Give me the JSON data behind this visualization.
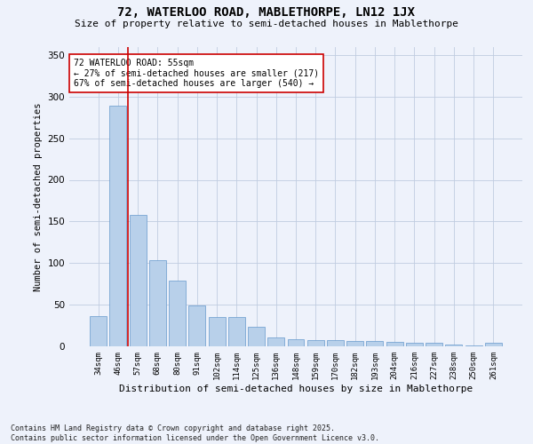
{
  "title": "72, WATERLOO ROAD, MABLETHORPE, LN12 1JX",
  "subtitle": "Size of property relative to semi-detached houses in Mablethorpe",
  "xlabel": "Distribution of semi-detached houses by size in Mablethorpe",
  "ylabel": "Number of semi-detached properties",
  "categories": [
    "34sqm",
    "46sqm",
    "57sqm",
    "68sqm",
    "80sqm",
    "91sqm",
    "102sqm",
    "114sqm",
    "125sqm",
    "136sqm",
    "148sqm",
    "159sqm",
    "170sqm",
    "182sqm",
    "193sqm",
    "204sqm",
    "216sqm",
    "227sqm",
    "238sqm",
    "250sqm",
    "261sqm"
  ],
  "values": [
    36,
    289,
    158,
    103,
    79,
    49,
    35,
    35,
    23,
    11,
    9,
    7,
    7,
    6,
    6,
    5,
    4,
    4,
    2,
    1,
    4
  ],
  "bar_color": "#b8d0ea",
  "bar_edge_color": "#6699cc",
  "vline_x": 1.5,
  "vline_color": "#cc0000",
  "annotation_text": "72 WATERLOO ROAD: 55sqm\n← 27% of semi-detached houses are smaller (217)\n67% of semi-detached houses are larger (540) →",
  "background_color": "#eef2fb",
  "footer_text": "Contains HM Land Registry data © Crown copyright and database right 2025.\nContains public sector information licensed under the Open Government Licence v3.0.",
  "ylim": [
    0,
    360
  ],
  "yticks": [
    0,
    50,
    100,
    150,
    200,
    250,
    300,
    350
  ]
}
